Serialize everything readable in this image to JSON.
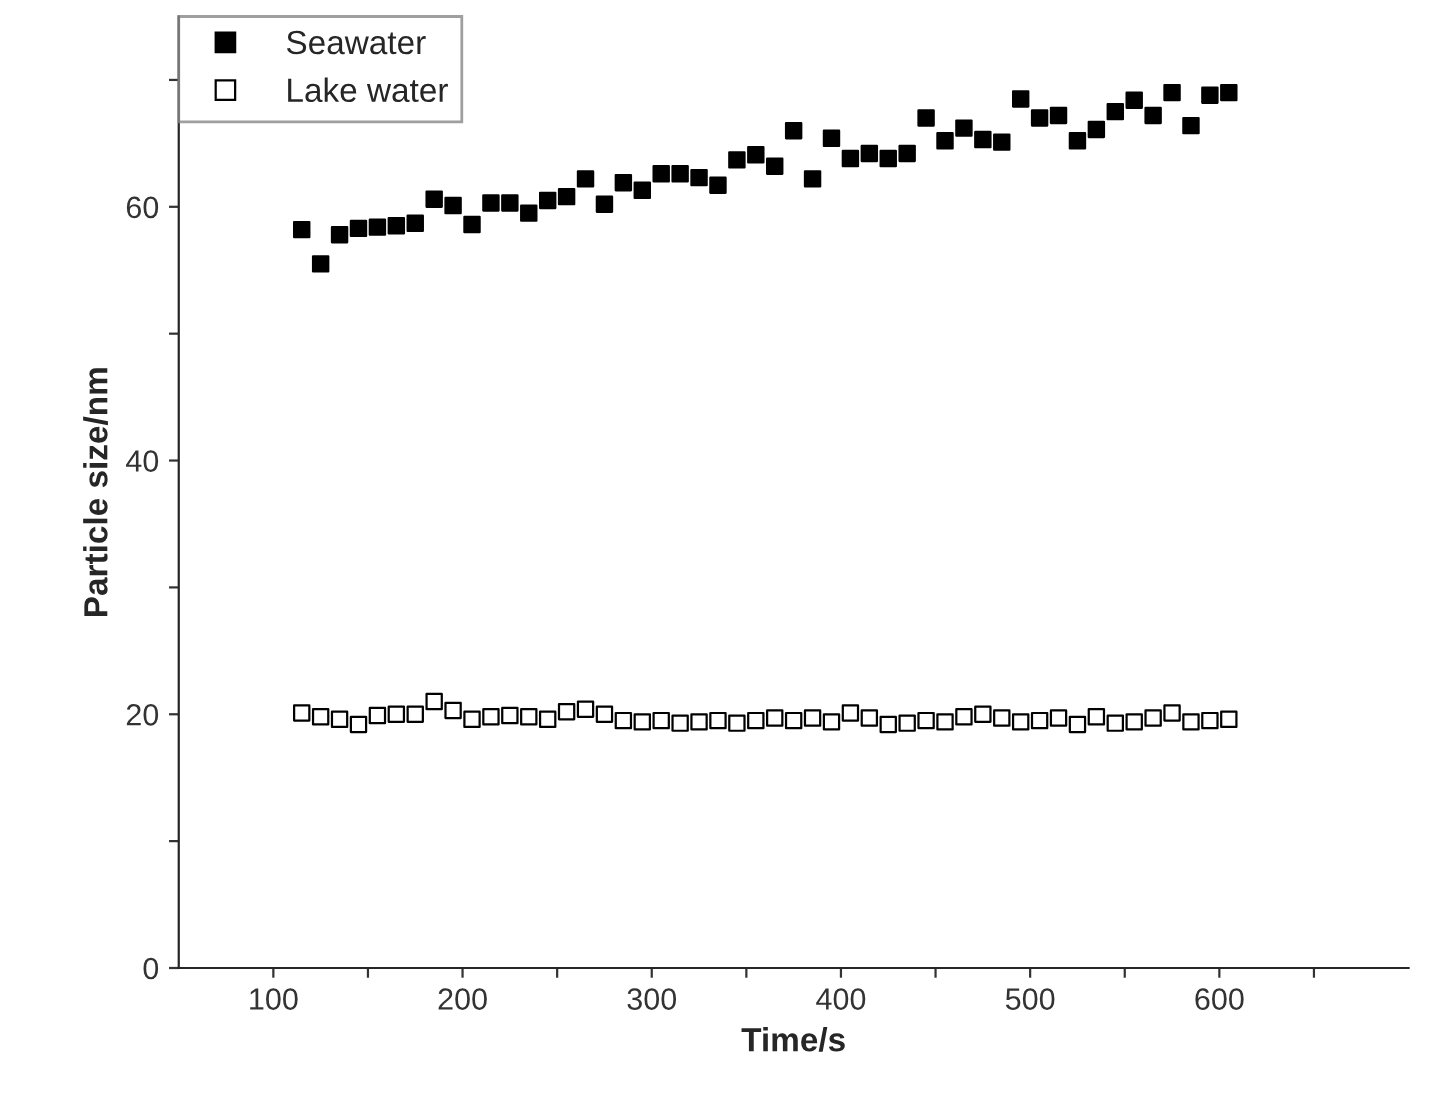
{
  "chart_data": {
    "type": "scatter",
    "xlabel": "Time/s",
    "ylabel": "Particle size/nm",
    "x": [
      115,
      125,
      135,
      145,
      155,
      165,
      175,
      185,
      195,
      205,
      215,
      225,
      235,
      245,
      255,
      265,
      275,
      285,
      295,
      305,
      315,
      325,
      335,
      345,
      355,
      365,
      375,
      385,
      395,
      405,
      415,
      425,
      435,
      445,
      455,
      465,
      475,
      485,
      495,
      505,
      515,
      525,
      535,
      545,
      555,
      565,
      575,
      585,
      595,
      605
    ],
    "series": [
      {
        "name": "Seawater",
        "color": "#000000",
        "values": [
          58.2,
          55.5,
          57.8,
          58.3,
          58.4,
          58.5,
          58.7,
          60.6,
          60.1,
          58.6,
          60.3,
          60.3,
          59.5,
          60.5,
          60.8,
          62.2,
          60.2,
          61.9,
          61.3,
          62.6,
          62.6,
          62.3,
          61.7,
          63.7,
          64.1,
          63.2,
          66.0,
          62.2,
          65.4,
          63.8,
          64.2,
          63.8,
          64.2,
          67.0,
          65.2,
          66.2,
          65.3,
          65.1,
          68.5,
          67.0,
          67.2,
          65.2,
          66.1,
          67.5,
          68.4,
          67.2,
          69.0,
          66.4,
          68.8,
          69.0
        ]
      },
      {
        "name": "Lake water",
        "color": "#ffffff",
        "values": [
          20.1,
          19.8,
          19.6,
          19.2,
          19.9,
          20.0,
          20.0,
          21.0,
          20.3,
          19.6,
          19.8,
          19.9,
          19.8,
          19.6,
          20.2,
          20.4,
          20.0,
          19.5,
          19.4,
          19.5,
          19.3,
          19.4,
          19.5,
          19.3,
          19.5,
          19.7,
          19.5,
          19.7,
          19.4,
          20.1,
          19.7,
          19.2,
          19.3,
          19.5,
          19.4,
          19.8,
          20.0,
          19.7,
          19.4,
          19.5,
          19.7,
          19.2,
          19.8,
          19.3,
          19.4,
          19.7,
          20.1,
          19.4,
          19.5,
          19.6
        ]
      }
    ],
    "marker": "square",
    "xlim": [
      50,
      700
    ],
    "xticks": [
      100,
      {
        "value": 150,
        "label": null
      },
      200,
      {
        "value": 250,
        "label": null
      },
      300,
      {
        "value": 350,
        "label": null
      },
      400,
      {
        "value": 450,
        "label": null
      },
      500,
      {
        "value": 550,
        "label": null
      },
      600,
      {
        "value": 650,
        "label": null
      }
    ],
    "ylim": [
      0,
      75
    ],
    "yticks": [
      0,
      {
        "value": 10,
        "label": null
      },
      20,
      {
        "value": 30,
        "label": null
      },
      40,
      {
        "value": 50,
        "label": null
      },
      60,
      {
        "value": 70,
        "label": null
      }
    ],
    "grid": false,
    "legend": "top left"
  }
}
